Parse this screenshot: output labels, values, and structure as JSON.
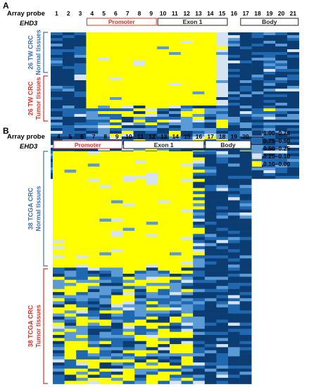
{
  "chart_data": [
    {
      "type": "heatmap",
      "panel_label": "A",
      "row_header": "Array probe",
      "gene": "EHD3",
      "probes": [
        "1",
        "2",
        "3",
        "4",
        "5",
        "6",
        "7",
        "8",
        "9",
        "10",
        "11",
        "12",
        "13",
        "14",
        "15",
        "16",
        "17",
        "18",
        "19",
        "20",
        "21"
      ],
      "regions": [
        {
          "name": "Promoter",
          "from": "4",
          "to": "9",
          "color": "#d9342b"
        },
        {
          "name": "Exon 1",
          "from": "10",
          "to": "15",
          "color": "#222222"
        },
        {
          "name": "Body",
          "from": "17",
          "to": "21",
          "color": "#222222"
        }
      ],
      "groups": [
        {
          "lines": [
            "26 TW CRC",
            "Normal tissues"
          ],
          "rows": 26,
          "color": "#3c6fb6"
        },
        {
          "lines": [
            "26 TW CRC",
            "Tumor tissues"
          ],
          "rows": 26,
          "color": "#d9342b"
        }
      ]
    },
    {
      "type": "heatmap",
      "panel_label": "B",
      "row_header": "Array probe",
      "gene": "EHD3",
      "probes": [
        "4",
        "5",
        "6",
        "7",
        "8",
        "9",
        "10",
        "11",
        "12",
        "13",
        "14",
        "15",
        "16",
        "17",
        "18",
        "19",
        "20"
      ],
      "regions": [
        {
          "name": "Promoter",
          "from": "4",
          "to": "9",
          "color": "#d9342b"
        },
        {
          "name": "Exon 1",
          "from": "10",
          "to": "16",
          "color": "#222222"
        },
        {
          "name": "Body",
          "from": "17",
          "to": "20",
          "color": "#222222"
        }
      ],
      "groups": [
        {
          "lines": [
            "38 TCGA CRC",
            "Normal tissues"
          ],
          "rows": 38,
          "color": "#3c6fb6"
        },
        {
          "lines": [
            "38 TCGA CRC",
            "Tumor tissues"
          ],
          "rows": 38,
          "color": "#d9342b"
        }
      ]
    }
  ],
  "legend": {
    "bins": [
      {
        "label": "1.00~0.75",
        "color": "#0b3d73"
      },
      {
        "label": "0.75~0.50",
        "color": "#1f68b0"
      },
      {
        "label": "0.50~0.25",
        "color": "#5b9bd5"
      },
      {
        "label": "0.25~0.10",
        "color": "#d6e3f0"
      },
      {
        "label": "0.10~0.00",
        "color": "#ffff00"
      }
    ]
  }
}
